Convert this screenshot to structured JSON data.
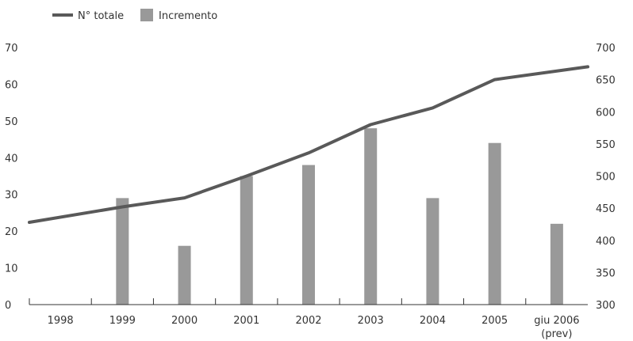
{
  "chart_data": {
    "type": "bar",
    "categories": [
      "1998",
      "1999",
      "2000",
      "2001",
      "2002",
      "2003",
      "2004",
      "2005",
      "giu 2006"
    ],
    "category_sublabels": [
      "",
      "",
      "",
      "",
      "",
      "",
      "",
      "",
      "(prev)"
    ],
    "series": [
      {
        "name": "Incremento",
        "type": "bar",
        "axis": "left",
        "color": "#999999",
        "values": [
          null,
          29,
          16,
          35,
          38,
          48,
          29,
          44,
          22
        ]
      },
      {
        "name": "N° totale",
        "type": "line",
        "axis": "right",
        "color": "#595959",
        "values": [
          428,
          452,
          466,
          500,
          536,
          580,
          606,
          650,
          670
        ]
      }
    ],
    "y_left": {
      "ylim": [
        0,
        70
      ],
      "ticks": [
        "0",
        "10",
        "20",
        "30",
        "40",
        "50",
        "60",
        "70"
      ]
    },
    "y_right": {
      "ylim": [
        300,
        700
      ],
      "ticks": [
        "300",
        "350",
        "400",
        "450",
        "500",
        "550",
        "600",
        "650",
        "700"
      ]
    },
    "legend": {
      "position": "top-left",
      "items": [
        "N° totale",
        "Incremento"
      ]
    },
    "grid": false
  }
}
